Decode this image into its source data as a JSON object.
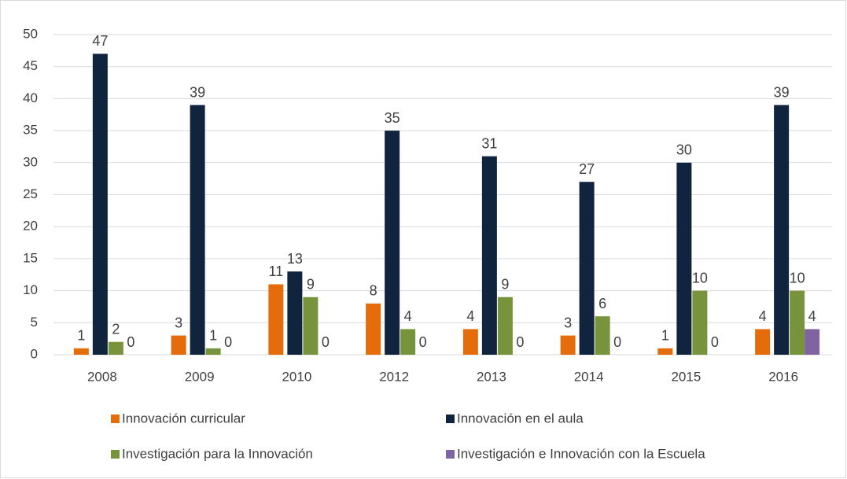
{
  "chart_data": {
    "type": "bar",
    "categories": [
      "2008",
      "2009",
      "2010",
      "2012",
      "2013",
      "2014",
      "2015",
      "2016"
    ],
    "series": [
      {
        "name": "Innovación curricular",
        "color": "#e46c0a",
        "values": [
          1,
          3,
          11,
          8,
          4,
          3,
          1,
          4
        ]
      },
      {
        "name": "Innovación en el aula",
        "color": "#10243e",
        "values": [
          47,
          39,
          13,
          35,
          31,
          27,
          30,
          39
        ]
      },
      {
        "name": "Investigación para la Innovación",
        "color": "#77933c",
        "values": [
          2,
          1,
          9,
          4,
          9,
          6,
          10,
          10
        ]
      },
      {
        "name": "Investigación e Innovación con la Escuela",
        "color": "#8064a2",
        "values": [
          0,
          0,
          0,
          0,
          0,
          0,
          0,
          4
        ]
      }
    ],
    "ylim": [
      0,
      50
    ],
    "yticks": [
      0,
      5,
      10,
      15,
      20,
      25,
      30,
      35,
      40,
      45,
      50
    ],
    "grid": true,
    "legend": "bottom"
  }
}
